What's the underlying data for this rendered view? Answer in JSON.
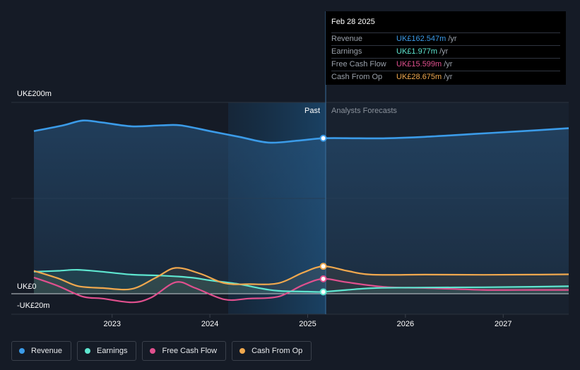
{
  "tooltip": {
    "date": "Feb 28 2025",
    "rows": [
      {
        "label": "Revenue",
        "value": "UK£162.547m",
        "unit": "/yr",
        "color": "#3b9be8"
      },
      {
        "label": "Earnings",
        "value": "UK£1.977m",
        "unit": "/yr",
        "color": "#5ee6d0"
      },
      {
        "label": "Free Cash Flow",
        "value": "UK£15.599m",
        "unit": "/yr",
        "color": "#e0508e"
      },
      {
        "label": "Cash From Op",
        "value": "UK£28.675m",
        "unit": "/yr",
        "color": "#f0a84e"
      }
    ]
  },
  "legend": [
    {
      "label": "Revenue",
      "color": "#3b9be8"
    },
    {
      "label": "Earnings",
      "color": "#5ee6d0"
    },
    {
      "label": "Free Cash Flow",
      "color": "#e0508e"
    },
    {
      "label": "Cash From Op",
      "color": "#f0a84e"
    }
  ],
  "chart_data": {
    "type": "line",
    "title": "",
    "y_tick_labels": [
      "UK£200m",
      "UK£0",
      "-UK£20m"
    ],
    "ylim": [
      -20,
      200
    ],
    "xlim": [
      2022.2,
      2027.67
    ],
    "x_ticks": [
      2023,
      2024,
      2025,
      2026,
      2027
    ],
    "x_tick_labels": [
      "2023",
      "2024",
      "2025",
      "2026",
      "2027"
    ],
    "past_label": "Past",
    "forecast_label": "Analysts Forecasts",
    "divider_x": 2025.16,
    "highlight_start_x": 2024.17,
    "series": [
      {
        "name": "Revenue",
        "color": "#3b9be8",
        "marker": 162.547,
        "points": [
          [
            2022.2,
            170
          ],
          [
            2022.5,
            176
          ],
          [
            2022.7,
            181
          ],
          [
            2022.9,
            179
          ],
          [
            2023.2,
            175
          ],
          [
            2023.5,
            176
          ],
          [
            2023.7,
            176
          ],
          [
            2024.0,
            170
          ],
          [
            2024.3,
            164
          ],
          [
            2024.6,
            158
          ],
          [
            2024.9,
            160
          ],
          [
            2025.16,
            162.5
          ],
          [
            2025.5,
            162.5
          ],
          [
            2025.8,
            162.5
          ],
          [
            2026.2,
            164
          ],
          [
            2026.7,
            167
          ],
          [
            2027.2,
            170
          ],
          [
            2027.67,
            173
          ]
        ]
      },
      {
        "name": "Earnings",
        "color": "#5ee6d0",
        "marker": 1.977,
        "points": [
          [
            2022.2,
            23
          ],
          [
            2022.45,
            24
          ],
          [
            2022.65,
            25
          ],
          [
            2022.9,
            23
          ],
          [
            2023.2,
            20
          ],
          [
            2023.5,
            19
          ],
          [
            2023.8,
            17
          ],
          [
            2024.0,
            14
          ],
          [
            2024.3,
            10
          ],
          [
            2024.5,
            6
          ],
          [
            2024.7,
            3
          ],
          [
            2025.0,
            2.2
          ],
          [
            2025.16,
            1.977
          ],
          [
            2025.4,
            4
          ],
          [
            2025.7,
            6
          ],
          [
            2026.2,
            6.5
          ],
          [
            2026.8,
            6.8
          ],
          [
            2027.3,
            7.3
          ],
          [
            2027.67,
            7.8
          ]
        ]
      },
      {
        "name": "Free Cash Flow",
        "color": "#e0508e",
        "marker": 15.599,
        "points": [
          [
            2022.2,
            17
          ],
          [
            2022.45,
            8
          ],
          [
            2022.7,
            -3
          ],
          [
            2022.9,
            -5
          ],
          [
            2023.2,
            -9
          ],
          [
            2023.4,
            -4
          ],
          [
            2023.65,
            12
          ],
          [
            2023.85,
            6
          ],
          [
            2024.15,
            -6
          ],
          [
            2024.4,
            -5
          ],
          [
            2024.7,
            -3
          ],
          [
            2024.95,
            9
          ],
          [
            2025.16,
            15.6
          ],
          [
            2025.4,
            12
          ],
          [
            2025.8,
            7
          ],
          [
            2026.2,
            6
          ],
          [
            2026.8,
            4
          ],
          [
            2027.3,
            4
          ],
          [
            2027.67,
            4
          ]
        ]
      },
      {
        "name": "Cash From Op",
        "color": "#f0a84e",
        "marker": 28.675,
        "points": [
          [
            2022.2,
            24
          ],
          [
            2022.45,
            16
          ],
          [
            2022.65,
            8
          ],
          [
            2022.9,
            6
          ],
          [
            2023.2,
            5
          ],
          [
            2023.45,
            17
          ],
          [
            2023.65,
            27
          ],
          [
            2023.9,
            21
          ],
          [
            2024.15,
            11
          ],
          [
            2024.4,
            10
          ],
          [
            2024.7,
            11
          ],
          [
            2024.95,
            22
          ],
          [
            2025.16,
            28.7
          ],
          [
            2025.4,
            24
          ],
          [
            2025.65,
            20
          ],
          [
            2026.2,
            20
          ],
          [
            2026.8,
            19.8
          ],
          [
            2027.3,
            20
          ],
          [
            2027.67,
            20.3
          ]
        ]
      }
    ]
  }
}
